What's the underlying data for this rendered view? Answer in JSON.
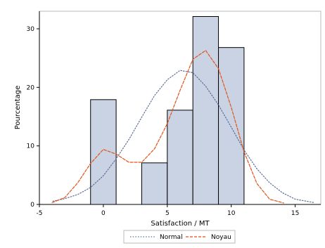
{
  "chart_data": {
    "type": "bar",
    "xlabel": "Satisfaction / MT",
    "ylabel": "Pourcentage",
    "xlim": [
      -5,
      17
    ],
    "ylim": [
      0,
      33
    ],
    "x_ticks": [
      -5,
      0,
      5,
      10,
      15
    ],
    "y_ticks": [
      0,
      10,
      20,
      30
    ],
    "x_tick_labels": [
      "-5",
      "0",
      "5",
      "10",
      "15"
    ],
    "y_tick_labels": [
      "0",
      "10",
      "20",
      "30"
    ],
    "grid": false,
    "legend_position": "bottom-center",
    "bar_fill": "#c9d3e3",
    "bar_edge": "#000000",
    "bins": [
      {
        "start": -1,
        "end": 1,
        "value": 17.9
      },
      {
        "start": 1,
        "end": 3,
        "value": 0
      },
      {
        "start": 3,
        "end": 5,
        "value": 7.1
      },
      {
        "start": 5,
        "end": 7,
        "value": 16.1
      },
      {
        "start": 7,
        "end": 9,
        "value": 32.1
      },
      {
        "start": 9,
        "end": 11,
        "value": 26.8
      }
    ],
    "series": [
      {
        "name": "Normal",
        "type": "line",
        "style": "dotted",
        "color": "#5d6f99",
        "x": [
          -3.95,
          -3,
          -2,
          -1,
          0,
          1,
          2,
          3,
          4,
          5,
          6,
          7,
          8,
          9,
          10,
          11,
          12,
          13,
          14,
          15,
          16.5
        ],
        "y": [
          0.55,
          1.0,
          1.7,
          2.9,
          4.9,
          7.8,
          11.1,
          14.9,
          18.6,
          21.3,
          22.9,
          22.5,
          20.2,
          17.0,
          13.2,
          9.3,
          6.1,
          3.7,
          2.0,
          0.9,
          0.3
        ]
      },
      {
        "name": "Noyau",
        "type": "line",
        "style": "dashed",
        "color": "#e0531a",
        "x": [
          -4.0,
          -3,
          -2,
          -1,
          0,
          1,
          2,
          3,
          4,
          5,
          6,
          7,
          8,
          9,
          10,
          11,
          12,
          13,
          14.1
        ],
        "y": [
          0.3,
          1.2,
          3.7,
          7.0,
          9.4,
          8.6,
          7.2,
          7.2,
          9.5,
          13.8,
          19.5,
          24.8,
          26.3,
          23.2,
          16.6,
          9.0,
          3.6,
          0.9,
          0.25
        ]
      }
    ]
  }
}
